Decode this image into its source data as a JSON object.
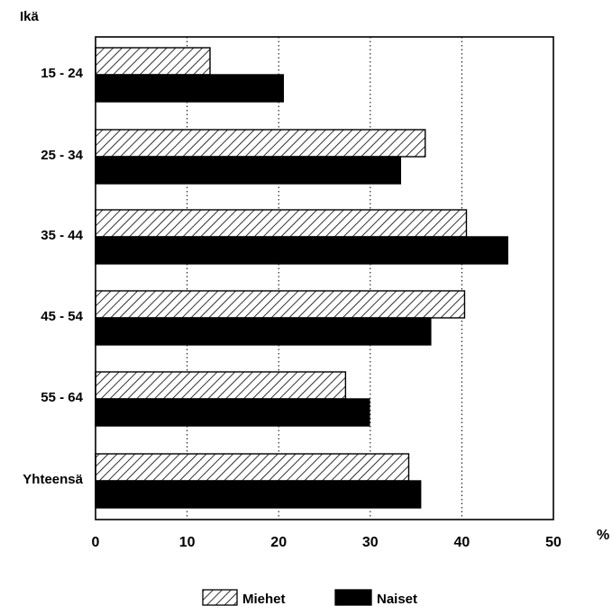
{
  "chart_data": {
    "type": "bar",
    "orientation": "horizontal",
    "title": "",
    "ylabel": "Ikä",
    "xlabel": "%",
    "categories": [
      "15 - 24",
      "25 - 34",
      "35 - 44",
      "45 - 54",
      "55 - 64",
      "Yhteensä"
    ],
    "series": [
      {
        "name": "Miehet",
        "pattern": "diagonal-hatch",
        "color": "#000000",
        "values": [
          12.5,
          36,
          40.5,
          40.3,
          27.3,
          34.2
        ]
      },
      {
        "name": "Naiset",
        "pattern": "solid",
        "color": "#000000",
        "values": [
          20.5,
          33.3,
          45,
          36.6,
          29.9,
          35.5
        ]
      }
    ],
    "xlim": [
      0,
      50
    ],
    "xticks": [
      0,
      10,
      20,
      30,
      40,
      50
    ],
    "grid": "vertical-dotted",
    "legend_position": "bottom-center"
  }
}
